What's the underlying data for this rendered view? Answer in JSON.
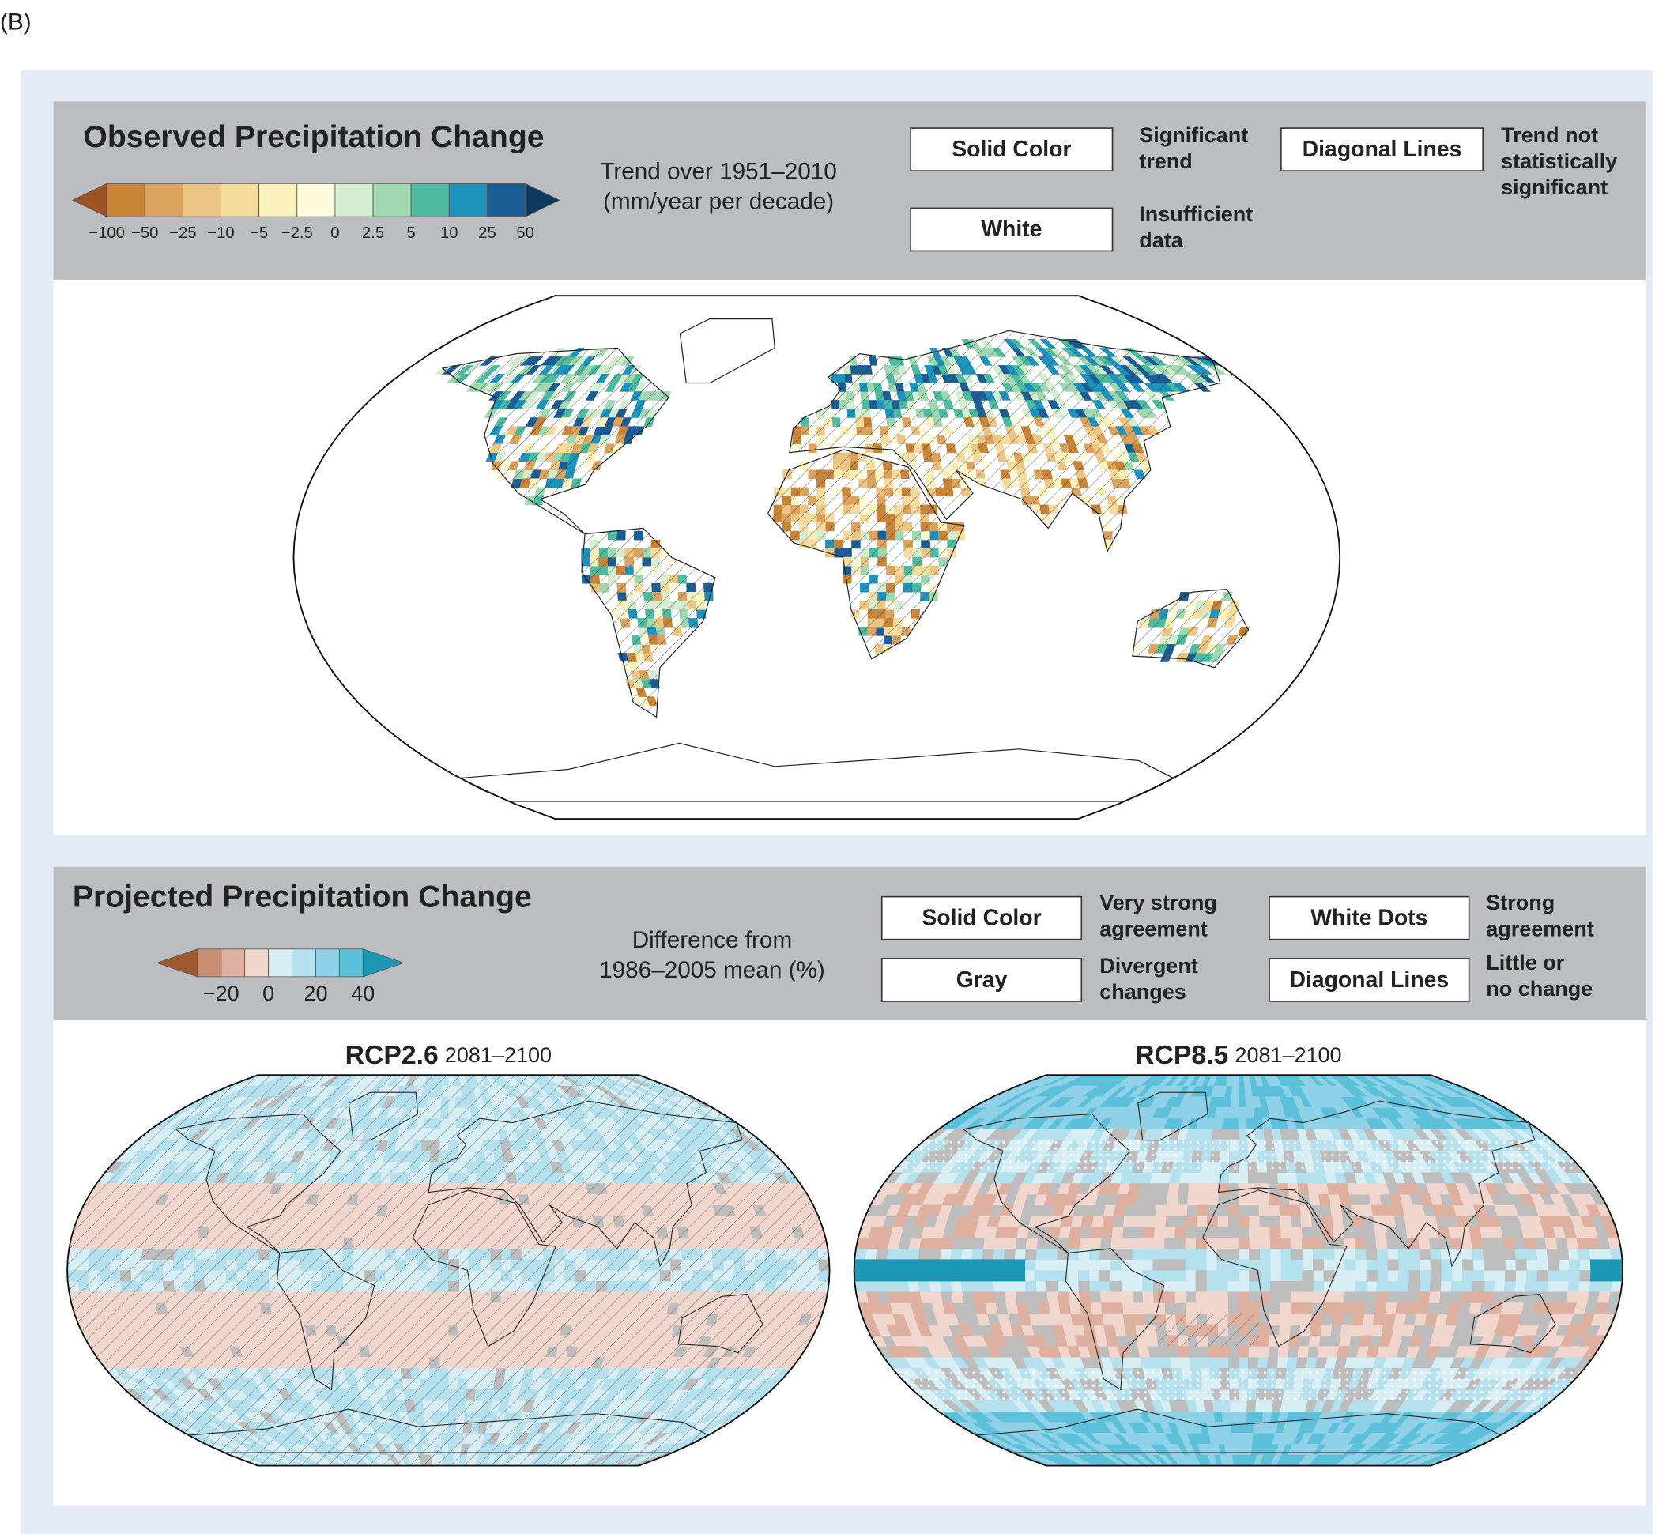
{
  "figure_label": "(B)",
  "observed": {
    "title": "Observed Precipitation Change",
    "colorbar": {
      "colors": [
        "#9c5522",
        "#c98537",
        "#dca35e",
        "#ecc483",
        "#f5dc9e",
        "#faf2bc",
        "#fdfbde",
        "#d5edcf",
        "#9fd7b1",
        "#4dbba0",
        "#1d93bd",
        "#1b5e96",
        "#0d3a5e"
      ],
      "labels": [
        "−100",
        "−50",
        "−25",
        "−10",
        "−5",
        "−2.5",
        "0",
        "2.5",
        "5",
        "10",
        "25",
        "50"
      ]
    },
    "units": [
      "Trend over 1951–2010",
      "(mm/year per decade)"
    ],
    "legend": [
      {
        "key": "Solid Color",
        "description": [
          "Significant",
          "trend"
        ]
      },
      {
        "key": "Diagonal Lines",
        "description": [
          "Trend not",
          "statistically",
          "significant"
        ]
      },
      {
        "key": "White",
        "description": [
          "Insufficient",
          "data"
        ]
      }
    ]
  },
  "projected": {
    "title": "Projected Precipitation Change",
    "colorbar": {
      "colors": [
        "#a0582e",
        "#c98f73",
        "#ddb0a0",
        "#f0d6cc",
        "#d8eef5",
        "#b5e1ee",
        "#8fd1e6",
        "#5cc0db",
        "#1c97b4"
      ],
      "labels": [
        "−20",
        "0",
        "20",
        "40"
      ]
    },
    "units": [
      "Difference from",
      "1986–2005 mean (%)"
    ],
    "legend": [
      {
        "key": "Solid Color",
        "description": [
          "Very strong",
          "agreement"
        ]
      },
      {
        "key": "White Dots",
        "description": [
          "Strong",
          "agreement"
        ]
      },
      {
        "key": "Gray",
        "description": [
          "Divergent",
          "changes"
        ]
      },
      {
        "key": "Diagonal Lines",
        "description": [
          "Little or",
          "no change"
        ]
      }
    ],
    "maps": [
      {
        "scenario": "RCP2.6",
        "period": "2081–2100"
      },
      {
        "scenario": "RCP8.5",
        "period": "2081–2100"
      }
    ]
  }
}
